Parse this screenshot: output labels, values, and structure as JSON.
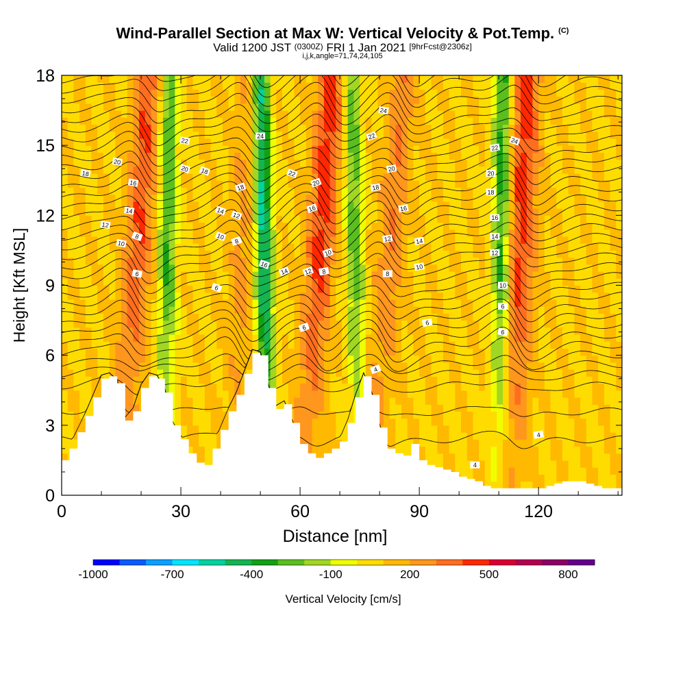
{
  "header": {
    "title": "Wind-Parallel Section at Max W: Vertical Velocity & Pot.Temp.",
    "title_tag": "(C)",
    "subtitle_main": "Valid 1200 JST",
    "subtitle_utc": "(0300Z)",
    "subtitle_date": "FRI 1 Jan 2021",
    "subtitle_fcst": "[9hrFcst@2306z]",
    "indices": "i,j,k,angle=71,74,24,105"
  },
  "chart_data": {
    "type": "heatmap",
    "title": "Wind-Parallel Section at Max W: Vertical Velocity & Pot.Temp.",
    "xlabel": "Distance [nm]",
    "ylabel": "Height [Kft MSL]",
    "xlim": [
      0,
      141
    ],
    "ylim": [
      0,
      18
    ],
    "xticks": [
      0,
      30,
      60,
      90,
      120
    ],
    "xtick_labels": [
      "0",
      "30",
      "60",
      "90",
      "120"
    ],
    "yticks": [
      0,
      3,
      6,
      9,
      12,
      15,
      18
    ],
    "ytick_labels": [
      "0",
      "3",
      "6",
      "9",
      "12",
      "15",
      "18"
    ],
    "colorbar": {
      "label": "Vertical Velocity [cm/s]",
      "tick_labels": [
        "-1000",
        "-700",
        "-400",
        "-100",
        "200",
        "500",
        "800"
      ],
      "tick_values": [
        -1000,
        -700,
        -400,
        -100,
        200,
        500,
        800
      ],
      "colors": [
        "#0000ff",
        "#0a5aff",
        "#0aa0ff",
        "#00e6ff",
        "#00d2a0",
        "#14b450",
        "#14a014",
        "#5abe1e",
        "#a0d723",
        "#f0ff00",
        "#ffdc00",
        "#ffb900",
        "#ff961e",
        "#ff6e1e",
        "#ff2800",
        "#dc0032",
        "#b40050",
        "#8c0064",
        "#64008c"
      ]
    },
    "updraft_bands": [
      {
        "x_top": 22,
        "x_bottom": 15,
        "peak": 300
      },
      {
        "x_top": 48,
        "x_bottom": 43,
        "peak": 150
      },
      {
        "x_top": 68,
        "x_bottom": 61,
        "peak": 350
      },
      {
        "x_top": 86,
        "x_bottom": 78,
        "peak": 200
      },
      {
        "x_top": 117,
        "x_bottom": 113,
        "peak": 350
      }
    ],
    "downdraft_bands": [
      {
        "x_top": 27,
        "x_bottom": 26,
        "peak": -400
      },
      {
        "x_top": 50,
        "x_bottom": 52,
        "peak": -650
      },
      {
        "x_top": 73,
        "x_bottom": 75,
        "peak": -350
      },
      {
        "x_top": 111,
        "x_bottom": 110,
        "peak": -450
      }
    ],
    "terrain": {
      "x": [
        0,
        2,
        4,
        6,
        8,
        10,
        12,
        14,
        16,
        18,
        20,
        22,
        24,
        26,
        28,
        30,
        32,
        34,
        36,
        38,
        40,
        42,
        44,
        46,
        48,
        50,
        52,
        54,
        56,
        58,
        60,
        62,
        64,
        66,
        68,
        70,
        72,
        74,
        76,
        78,
        80,
        82,
        84,
        86,
        88,
        90,
        92,
        94,
        96,
        98,
        100,
        102,
        104,
        106,
        108,
        110,
        112,
        114,
        116,
        118,
        120,
        122,
        124,
        126,
        128,
        130,
        132,
        134,
        136,
        138,
        140
      ],
      "height_kft": [
        1.5,
        2.0,
        2.7,
        3.4,
        4.2,
        5.0,
        5.1,
        4.8,
        3.2,
        3.6,
        4.6,
        5.1,
        5.0,
        4.4,
        3.0,
        2.4,
        1.8,
        1.4,
        1.3,
        2.0,
        2.8,
        3.6,
        4.3,
        5.2,
        6.1,
        6.0,
        4.6,
        3.7,
        3.9,
        3.1,
        2.2,
        1.8,
        1.6,
        1.8,
        2.0,
        2.3,
        3.1,
        4.2,
        5.1,
        4.3,
        2.9,
        2.0,
        1.8,
        1.7,
        2.2,
        1.5,
        1.3,
        1.2,
        1.1,
        1.0,
        0.8,
        0.7,
        0.6,
        0.4,
        0.3,
        0.3,
        0.3,
        0.3,
        0.3,
        0.3,
        0.3,
        0.4,
        0.5,
        0.6,
        0.6,
        0.6,
        0.5,
        0.4,
        0.3,
        0.3,
        0.3
      ]
    },
    "theta_contour_labels": [
      {
        "text": "4",
        "x": 79,
        "y": 5.4
      },
      {
        "text": "4",
        "x": 120,
        "y": 2.6
      },
      {
        "text": "4",
        "x": 104,
        "y": 1.3
      },
      {
        "text": "6",
        "x": 19,
        "y": 9.5
      },
      {
        "text": "6",
        "x": 39,
        "y": 8.9
      },
      {
        "text": "6",
        "x": 61,
        "y": 7.2
      },
      {
        "text": "6",
        "x": 92,
        "y": 7.4
      },
      {
        "text": "6",
        "x": 111,
        "y": 8.1
      },
      {
        "text": "6",
        "x": 111,
        "y": 7.0
      },
      {
        "text": "8",
        "x": 19,
        "y": 11.1
      },
      {
        "text": "8",
        "x": 44,
        "y": 10.9
      },
      {
        "text": "8",
        "x": 66,
        "y": 9.6
      },
      {
        "text": "8",
        "x": 82,
        "y": 9.5
      },
      {
        "text": "10",
        "x": 15,
        "y": 10.8
      },
      {
        "text": "10",
        "x": 40,
        "y": 11.1
      },
      {
        "text": "10",
        "x": 67,
        "y": 10.4
      },
      {
        "text": "10",
        "x": 90,
        "y": 9.8
      },
      {
        "text": "10",
        "x": 111,
        "y": 9.0
      },
      {
        "text": "12",
        "x": 11,
        "y": 11.6
      },
      {
        "text": "12",
        "x": 44,
        "y": 12.0
      },
      {
        "text": "12",
        "x": 62,
        "y": 9.6
      },
      {
        "text": "12",
        "x": 82,
        "y": 11.0
      },
      {
        "text": "12",
        "x": 109,
        "y": 10.4
      },
      {
        "text": "14",
        "x": 17,
        "y": 12.2
      },
      {
        "text": "14",
        "x": 40,
        "y": 12.2
      },
      {
        "text": "14",
        "x": 56,
        "y": 9.6
      },
      {
        "text": "14",
        "x": 90,
        "y": 10.9
      },
      {
        "text": "14",
        "x": 109,
        "y": 11.1
      },
      {
        "text": "16",
        "x": 18,
        "y": 13.4
      },
      {
        "text": "16",
        "x": 51,
        "y": 9.9
      },
      {
        "text": "16",
        "x": 63,
        "y": 12.3
      },
      {
        "text": "16",
        "x": 86,
        "y": 12.3
      },
      {
        "text": "16",
        "x": 109,
        "y": 11.9
      },
      {
        "text": "18",
        "x": 6,
        "y": 13.8
      },
      {
        "text": "18",
        "x": 36,
        "y": 13.9
      },
      {
        "text": "18",
        "x": 45,
        "y": 13.2
      },
      {
        "text": "18",
        "x": 79,
        "y": 13.2
      },
      {
        "text": "18",
        "x": 108,
        "y": 13.0
      },
      {
        "text": "20",
        "x": 14,
        "y": 14.3
      },
      {
        "text": "20",
        "x": 31,
        "y": 14.0
      },
      {
        "text": "20",
        "x": 64,
        "y": 13.4
      },
      {
        "text": "20",
        "x": 83,
        "y": 14.0
      },
      {
        "text": "20",
        "x": 108,
        "y": 13.8
      },
      {
        "text": "22",
        "x": 31,
        "y": 15.2
      },
      {
        "text": "22",
        "x": 58,
        "y": 13.8
      },
      {
        "text": "22",
        "x": 78,
        "y": 15.4
      },
      {
        "text": "22",
        "x": 109,
        "y": 14.9
      },
      {
        "text": "24",
        "x": 50,
        "y": 15.4
      },
      {
        "text": "24",
        "x": 81,
        "y": 16.5
      },
      {
        "text": "24",
        "x": 114,
        "y": 15.2
      }
    ]
  }
}
